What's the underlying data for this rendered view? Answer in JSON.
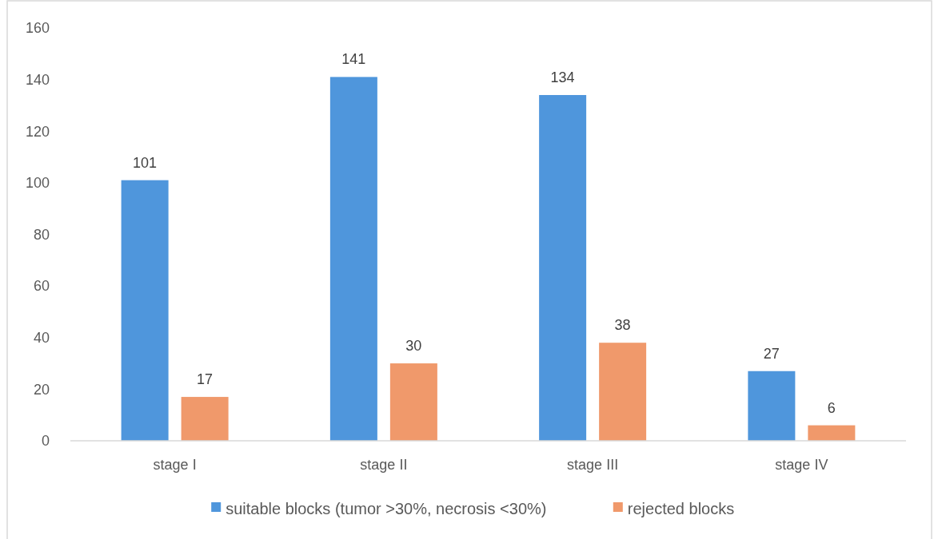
{
  "chart_data": {
    "type": "bar",
    "categories": [
      "stage I",
      "stage II",
      "stage III",
      "stage IV"
    ],
    "series": [
      {
        "name": "suitable blocks (tumor >30%, necrosis <30%)",
        "color": "#4f96dc",
        "values": [
          101,
          141,
          134,
          27
        ]
      },
      {
        "name": "rejected blocks",
        "color": "#f0996b",
        "values": [
          17,
          30,
          38,
          6
        ]
      }
    ],
    "ylim": [
      0,
      160
    ],
    "yticks": [
      0,
      20,
      40,
      60,
      80,
      100,
      120,
      140,
      160
    ],
    "data_labels": true,
    "legend": "bottom"
  }
}
